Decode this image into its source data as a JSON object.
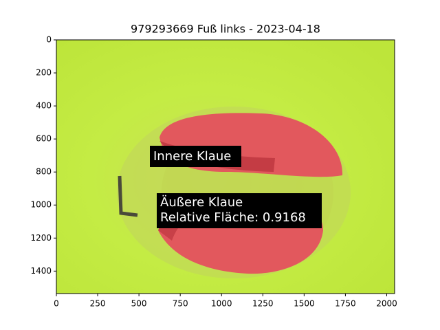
{
  "chart_data": {
    "type": "image",
    "title": "979293669 Fuß links - 2023-04-18",
    "xlim": [
      0,
      2048
    ],
    "ylim": [
      1536,
      0
    ],
    "xticks": [
      0,
      250,
      500,
      750,
      1000,
      1250,
      1500,
      1750,
      2000
    ],
    "yticks": [
      0,
      200,
      400,
      600,
      800,
      1000,
      1200,
      1400
    ],
    "annotations": [
      {
        "lines": [
          "Innere Klaue"
        ]
      },
      {
        "lines": [
          "Äußere Klaue",
          "Relative Fläche: 0.9168"
        ]
      }
    ]
  }
}
